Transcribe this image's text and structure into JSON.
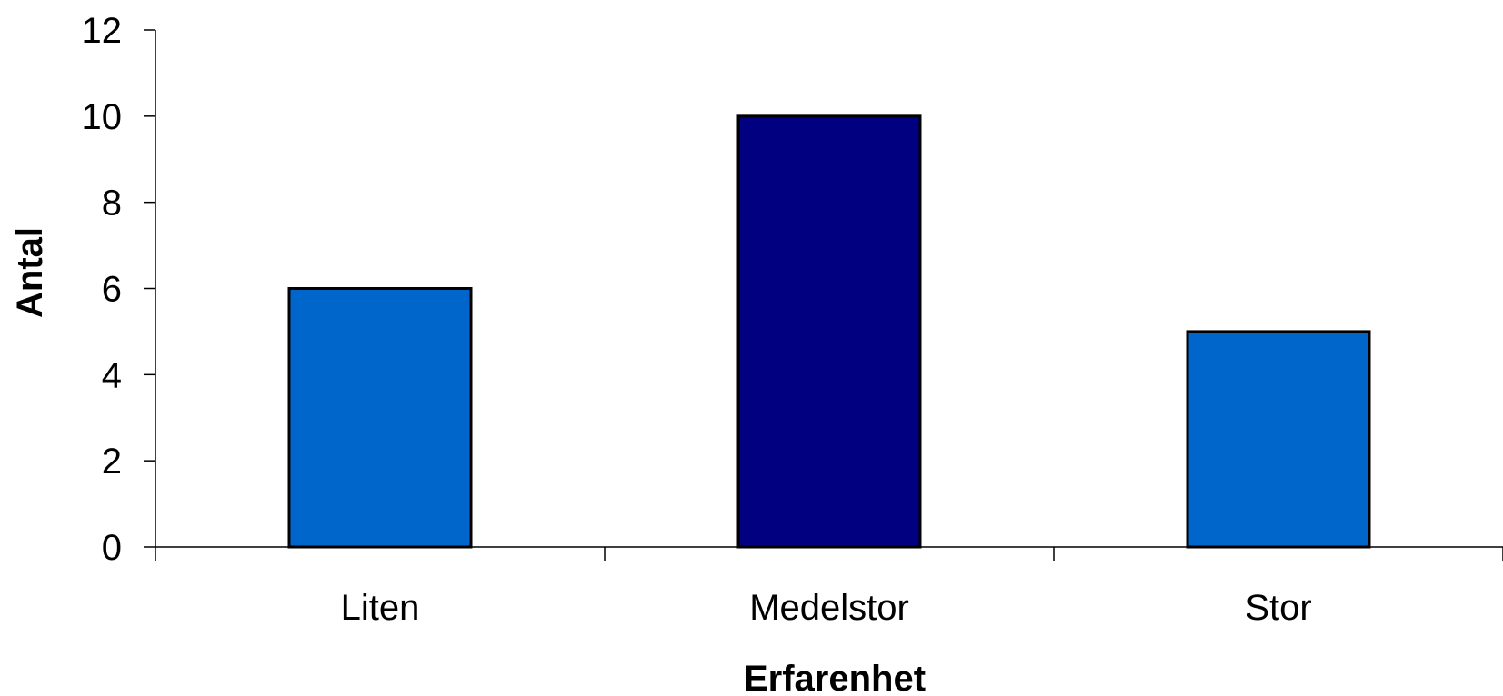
{
  "chart_data": {
    "type": "bar",
    "categories": [
      "Liten",
      "Medelstor",
      "Stor"
    ],
    "values": [
      6,
      10,
      5
    ],
    "bar_colors": [
      "#0066cc",
      "#000080",
      "#0066cc"
    ],
    "title": "",
    "xlabel": "Erfarenhet",
    "ylabel": "Antal",
    "ylim": [
      0,
      12
    ],
    "yticks": [
      0,
      2,
      4,
      6,
      8,
      10,
      12
    ],
    "grid": false,
    "legend": "none"
  }
}
